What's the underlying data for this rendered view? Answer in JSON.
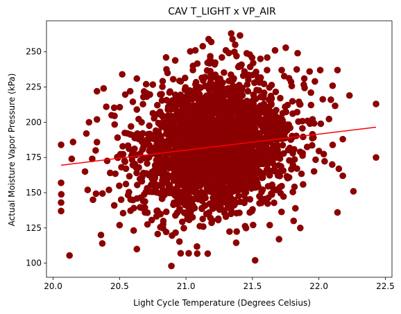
{
  "chart_data": {
    "type": "scatter",
    "title": "CAV T_LIGHT x VP_AIR",
    "xlabel": "Light Cycle Temperature (Degrees Celsius)",
    "ylabel": "Actual Moisture Vapor Pressure (kPa)",
    "xlim": [
      19.95,
      22.55
    ],
    "ylim": [
      90,
      272
    ],
    "xticks": [
      20.0,
      20.5,
      21.0,
      21.5,
      22.0,
      22.5
    ],
    "xtick_labels": [
      "20.0",
      "20.5",
      "21.0",
      "21.5",
      "22.0",
      "22.5"
    ],
    "yticks": [
      100,
      125,
      150,
      175,
      200,
      225,
      250
    ],
    "ytick_labels": [
      "100",
      "125",
      "150",
      "175",
      "200",
      "225",
      "250"
    ],
    "grid": false,
    "legend": "none",
    "cluster": {
      "center": [
        21.22,
        183
      ],
      "x_spread": [
        20.5,
        21.95
      ],
      "y_spread": [
        130,
        240
      ],
      "description_values": "dense elliptical point cloud of thousands of observations"
    },
    "points": [
      [
        20.06,
        184
      ],
      [
        20.06,
        157
      ],
      [
        20.06,
        143
      ],
      [
        20.06,
        137
      ],
      [
        20.14,
        174
      ],
      [
        20.15,
        186
      ],
      [
        20.27,
        200
      ],
      [
        20.33,
        222
      ],
      [
        20.38,
        224
      ],
      [
        20.33,
        202
      ],
      [
        20.4,
        211
      ],
      [
        20.44,
        205
      ],
      [
        20.36,
        120
      ],
      [
        20.37,
        114
      ],
      [
        20.63,
        110
      ],
      [
        20.78,
        137
      ],
      [
        20.89,
        98
      ],
      [
        20.96,
        107
      ],
      [
        21.02,
        107
      ],
      [
        21.17,
        259
      ],
      [
        21.19,
        257
      ],
      [
        21.27,
        246
      ],
      [
        21.34,
        263
      ],
      [
        21.35,
        259
      ],
      [
        21.37,
        255
      ],
      [
        21.3,
        251
      ],
      [
        21.38,
        247
      ],
      [
        21.4,
        240
      ],
      [
        21.44,
        236
      ],
      [
        21.48,
        248
      ],
      [
        21.56,
        245
      ],
      [
        21.61,
        237
      ],
      [
        21.67,
        251
      ],
      [
        21.72,
        237
      ],
      [
        21.84,
        249
      ],
      [
        21.89,
        231
      ],
      [
        21.93,
        236
      ],
      [
        21.94,
        221
      ],
      [
        21.97,
        229
      ],
      [
        22.01,
        237
      ],
      [
        22.09,
        216
      ],
      [
        22.14,
        237
      ],
      [
        22.18,
        188
      ],
      [
        22.23,
        219
      ],
      [
        22.1,
        170
      ],
      [
        22.15,
        167
      ],
      [
        22.18,
        162
      ],
      [
        22.14,
        136
      ],
      [
        22.26,
        151
      ],
      [
        22.43,
        213
      ],
      [
        22.43,
        175
      ],
      [
        21.52,
        102
      ],
      [
        21.3,
        133
      ],
      [
        21.63,
        127
      ],
      [
        21.81,
        130
      ],
      [
        21.86,
        125
      ],
      [
        21.7,
        117
      ],
      [
        20.58,
        222
      ],
      [
        20.7,
        227
      ],
      [
        20.85,
        246
      ],
      [
        20.52,
        234
      ],
      [
        20.63,
        231
      ],
      [
        20.24,
        165
      ],
      [
        20.26,
        152
      ],
      [
        20.3,
        145
      ],
      [
        20.42,
        152
      ],
      [
        20.25,
        192
      ],
      [
        20.32,
        180
      ],
      [
        20.46,
        141
      ],
      [
        20.5,
        127
      ],
      [
        21.07,
        251
      ],
      [
        21.48,
        136
      ]
    ],
    "regression_line": {
      "x": [
        20.06,
        22.43
      ],
      "y": [
        169.5,
        196.5
      ]
    },
    "point_color": "#8b0000",
    "line_color": "#ff0000"
  }
}
